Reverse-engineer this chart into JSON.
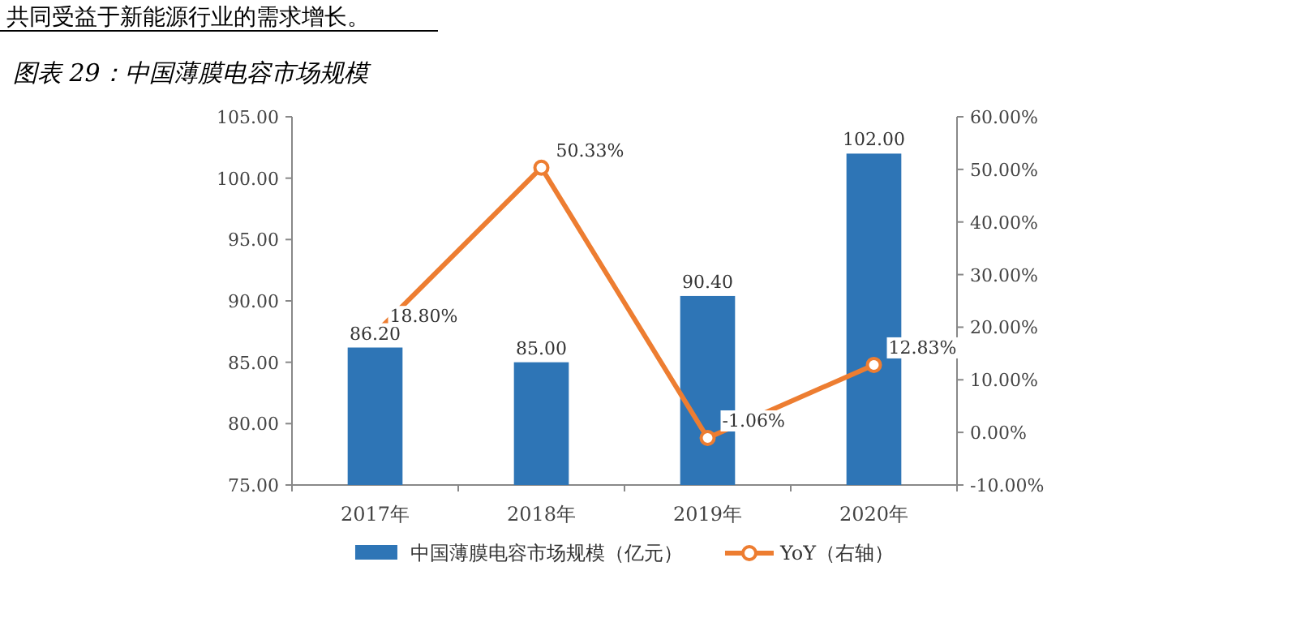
{
  "chart_data": {
    "type": "bar",
    "title": "图表 29：中国薄膜电容市场规模",
    "annotations": [
      "共同受益于新能源行业的需求增长。"
    ],
    "categories": [
      "2017年",
      "2018年",
      "2019年",
      "2020年"
    ],
    "series": [
      {
        "name": "中国薄膜电容市场规模（亿元）",
        "color": "#2e75b6",
        "values": [
          86.2,
          85.0,
          90.4,
          102.0
        ],
        "value_labels": [
          "86.20",
          "85.00",
          "90.40",
          "102.00"
        ]
      },
      {
        "name": "YoY（右轴）",
        "type": "line",
        "axis": "y2",
        "color": "#ed7d31",
        "marker": "circle",
        "values": [
          18.8,
          50.33,
          -1.06,
          12.83
        ],
        "value_labels": [
          "18.80%",
          "50.33%",
          "-1.06%",
          "12.83%"
        ]
      }
    ],
    "ylim": [
      75,
      105
    ],
    "yticks": [
      {
        "value": 75,
        "label": "75.00"
      },
      {
        "value": 80,
        "label": "80.00"
      },
      {
        "value": 85,
        "label": "85.00"
      },
      {
        "value": 90,
        "label": "90.00"
      },
      {
        "value": 95,
        "label": "95.00"
      },
      {
        "value": 100,
        "label": "100.00"
      },
      {
        "value": 105,
        "label": "105.00"
      }
    ],
    "y2lim": [
      -10,
      60
    ],
    "y2ticks": [
      {
        "value": -10,
        "label": "-10.00%"
      },
      {
        "value": 0,
        "label": "0.00%"
      },
      {
        "value": 10,
        "label": "10.00%"
      },
      {
        "value": 20,
        "label": "20.00%"
      },
      {
        "value": 30,
        "label": "30.00%"
      },
      {
        "value": 40,
        "label": "40.00%"
      },
      {
        "value": 50,
        "label": "50.00%"
      },
      {
        "value": 60,
        "label": "60.00%"
      }
    ],
    "legend": "bottom",
    "grid": false
  }
}
